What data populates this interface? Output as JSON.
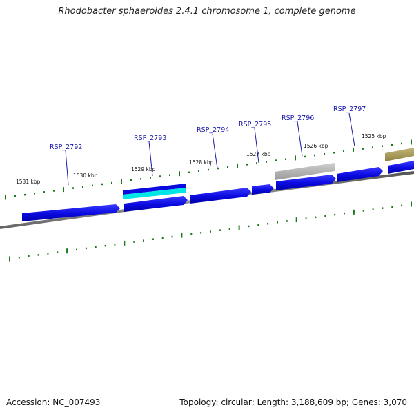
{
  "title": "Rhodobacter sphaeroides 2.4.1 chromosome 1, complete genome",
  "footer": {
    "accession": "Accession: NC_007493",
    "summary": "Topology: circular; Length: 3,188,609 bp; Genes: 3,070"
  },
  "colors": {
    "gene_blue": "#0a0ae0",
    "gene_cyan": "#00e5e5",
    "gene_gray": "#b4b4b4",
    "gene_olive": "#a89a55",
    "tick_green": "#1a7a1a",
    "backbone": "#777777",
    "label_blue": "#1a1aa8"
  },
  "kbp_ticks": [
    "1531 kbp",
    "1530 kbp",
    "1529 kbp",
    "1528 kbp",
    "1527 kbp",
    "1526 kbp",
    "1525 kbp"
  ],
  "genes": [
    {
      "id": "RSP_2792",
      "label": "RSP_2792",
      "color": "blue"
    },
    {
      "id": "RSP_2793",
      "label": "RSP_2793",
      "color": "blue-cyan"
    },
    {
      "id": "RSP_2794",
      "label": "RSP_2794",
      "color": "blue"
    },
    {
      "id": "RSP_2795",
      "label": "RSP_2795",
      "color": "blue"
    },
    {
      "id": "RSP_2796",
      "label": "RSP_2796",
      "color": "blue"
    },
    {
      "id": "RSP_2797",
      "label": "RSP_2797",
      "color": "blue"
    }
  ],
  "other_features": [
    {
      "id": "gray-feature",
      "color": "gray"
    },
    {
      "id": "olive-feature",
      "color": "olive"
    }
  ]
}
